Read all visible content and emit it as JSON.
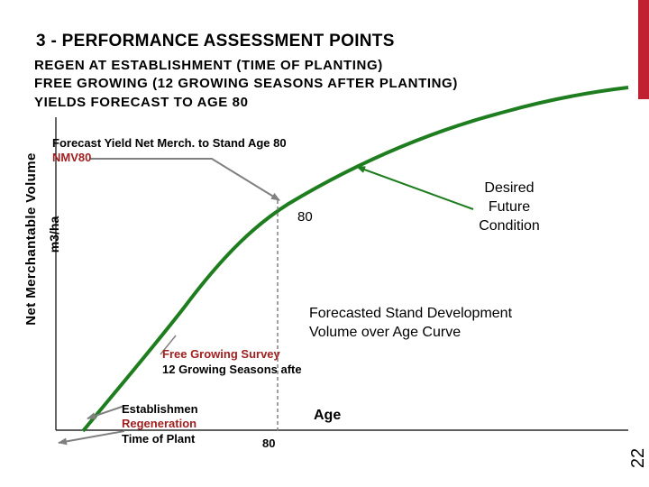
{
  "slide": {
    "title": "3 -  PERFORMANCE ASSESSMENT POINTS",
    "header_lines": [
      "REGEN AT ESTABLISHMENT (TIME OF PLANTING)",
      "FREE GROWING  (12 GROWING SEASONS AFTER PLANTING)",
      "YIELDS FORECAST TO AGE 80"
    ],
    "slide_number": "22",
    "accent_color": "#c0202f"
  },
  "diagram": {
    "y_axis_label_line1": "Net Merchantable Volume",
    "y_axis_label_line2": "m3/ha",
    "x_axis_label": "Age",
    "x_tick_80": "80",
    "forecast_yield_line1": "Forecast Yield Net Merch. to Stand Age 80",
    "forecast_yield_line2": "NMV80",
    "point_80_label": "80",
    "desired_future_condition_lines": [
      "Desired",
      "Future",
      "Condition"
    ],
    "stand_development_lines": [
      "Forecasted  Stand Development",
      "Volume over Age Curve"
    ],
    "free_growing_line1": "Free Growing Survey",
    "free_growing_line2": "12 Growing Seasons afte",
    "establishment_lines": [
      "Establishmen",
      "Regeneration",
      "Time of Plant"
    ],
    "curve_color": "#1e7d1e",
    "arrow_color": "#808080",
    "red_text_color": "#a02020"
  }
}
